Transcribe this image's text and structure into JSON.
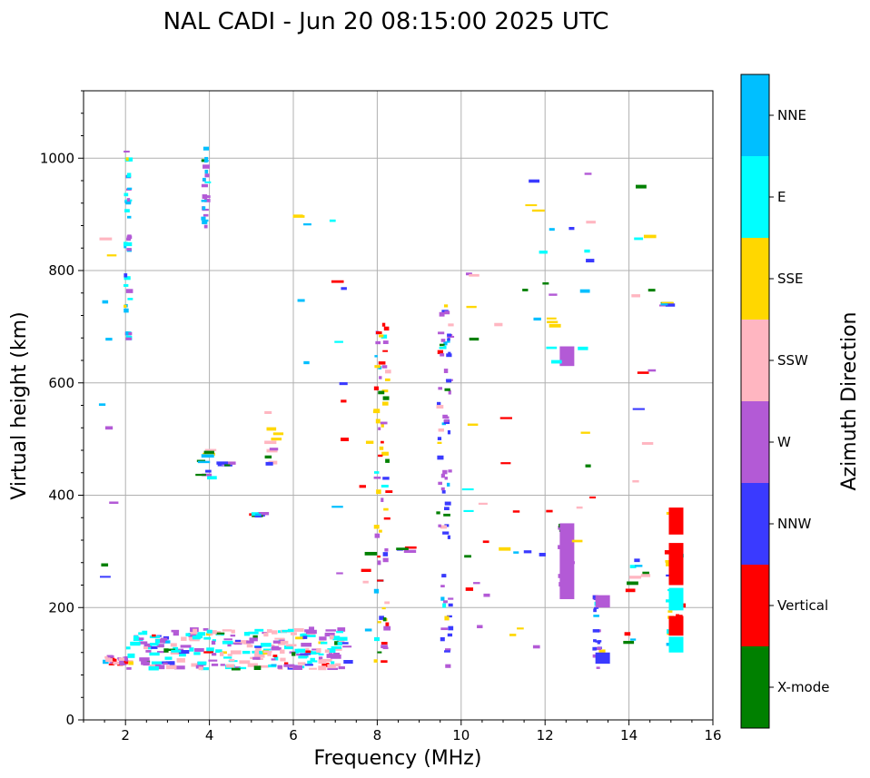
{
  "chart_data": {
    "type": "scatter",
    "title": "NAL CADI - Jun 20 08:15:00 2025 UTC",
    "xlabel": "Frequency (MHz)",
    "ylabel": "Virtual height (km)",
    "xlim": [
      1,
      16
    ],
    "ylim": [
      0,
      1120
    ],
    "xticks": [
      2,
      4,
      6,
      8,
      10,
      12,
      14,
      16
    ],
    "yticks": [
      0,
      200,
      400,
      600,
      800,
      1000
    ],
    "grid": true,
    "colorbar": {
      "label": "Azimuth Direction",
      "categories": [
        {
          "name": "X-mode",
          "color": "#008000"
        },
        {
          "name": "Vertical",
          "color": "#ff0000"
        },
        {
          "name": "NNW",
          "color": "#3a3aff"
        },
        {
          "name": "W",
          "color": "#b35ad6"
        },
        {
          "name": "SSW",
          "color": "#ffb6c1"
        },
        {
          "name": "SSE",
          "color": "#ffd700"
        },
        {
          "name": "E",
          "color": "#00ffff"
        },
        {
          "name": "NNE",
          "color": "#00bfff"
        }
      ]
    },
    "echo_groups": [
      {
        "name": "Sporadic E near 2 MHz",
        "x": [
          1.45,
          2.05
        ],
        "y": [
          95,
          110
        ],
        "dominant": [
          "Vertical",
          "W",
          "SSW"
        ]
      },
      {
        "name": "E trace 2-7 MHz",
        "x": [
          2.0,
          7.2
        ],
        "y": [
          88,
          160
        ],
        "dominant": [
          "E",
          "SSW",
          "W"
        ]
      },
      {
        "name": "Spread echoes 2 MHz",
        "x": [
          1.95,
          2.05
        ],
        "y": [
          670,
          1015
        ],
        "dominant": [
          "W",
          "NNE",
          "E"
        ]
      },
      {
        "name": "Spread echoes 3.8 MHz",
        "x": [
          3.8,
          3.9
        ],
        "y": [
          870,
          1015
        ],
        "dominant": [
          "W",
          "NNE"
        ]
      },
      {
        "name": "Column 8 MHz",
        "x": [
          7.9,
          8.2
        ],
        "y": [
          100,
          710
        ],
        "dominant": [
          "Vertical",
          "W",
          "SSE"
        ]
      },
      {
        "name": "Column 9.5 MHz",
        "x": [
          9.4,
          9.7
        ],
        "y": [
          90,
          740
        ],
        "dominant": [
          "NNW",
          "W"
        ]
      },
      {
        "name": "Column 12.4 MHz",
        "x": [
          12.3,
          12.55
        ],
        "y": [
          215,
          350
        ],
        "dominant": [
          "W",
          "NNW",
          "X-mode"
        ]
      },
      {
        "name": "Column 13.2 MHz",
        "x": [
          13.1,
          13.3
        ],
        "y": [
          90,
          220
        ],
        "dominant": [
          "W",
          "NNW"
        ]
      },
      {
        "name": "Column 15 MHz",
        "x": [
          14.85,
          15.2
        ],
        "y": [
          120,
          380
        ],
        "dominant": [
          "Vertical",
          "E",
          "SSE"
        ]
      }
    ]
  }
}
